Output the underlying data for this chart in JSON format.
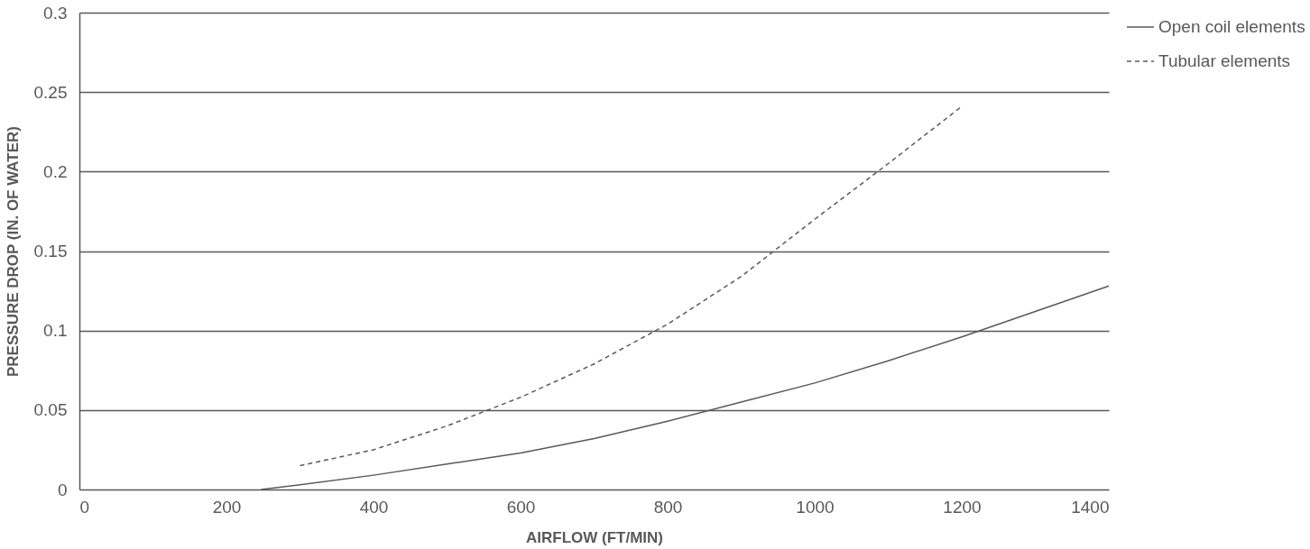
{
  "chart_data": {
    "type": "line",
    "xlabel": "AIRFLOW (FT/MIN)",
    "ylabel": "PRESSURE DROP (IN. OF WATER)",
    "xlim": [
      0,
      1400
    ],
    "xticks": [
      0,
      200,
      400,
      600,
      800,
      1000,
      1200,
      1400
    ],
    "ylim": [
      0,
      0.3
    ],
    "yticks": [
      0,
      0.05,
      0.1,
      0.15,
      0.2,
      0.25,
      0.3
    ],
    "grid": "y",
    "legend": "right",
    "marker": "none",
    "series": [
      {
        "name": "Open coil elements",
        "color": "#595959",
        "line_style": "solid",
        "x": [
          247,
          300,
          400,
          500,
          600,
          700,
          800,
          900,
          1000,
          1100,
          1200,
          1300,
          1400
        ],
        "values": [
          0,
          0.003,
          0.009,
          0.016,
          0.023,
          0.032,
          0.043,
          0.055,
          0.067,
          0.081,
          0.096,
          0.112,
          0.128
        ]
      },
      {
        "name": "Tubular elements",
        "color": "#595959",
        "line_style": "dashed",
        "x": [
          300,
          400,
          500,
          600,
          700,
          800,
          900,
          1000,
          1100,
          1200
        ],
        "values": [
          0.015,
          0.025,
          0.04,
          0.058,
          0.079,
          0.104,
          0.134,
          0.17,
          0.205,
          0.241
        ]
      }
    ]
  }
}
